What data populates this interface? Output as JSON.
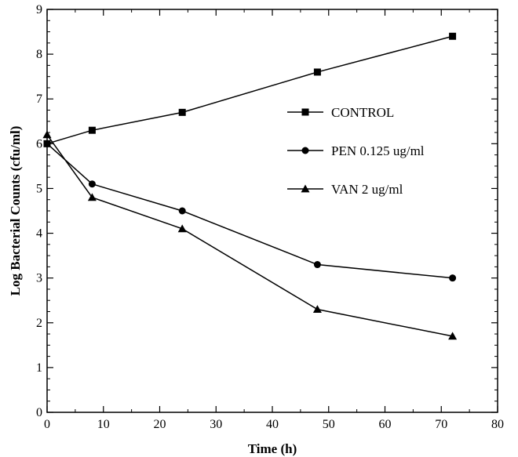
{
  "chart_data": {
    "type": "line",
    "xlabel": "Time (h)",
    "ylabel": "Log Bacterial Counts (cfu/ml)",
    "xlim": [
      0,
      80
    ],
    "ylim": [
      0,
      9
    ],
    "x_ticks": [
      0,
      10,
      20,
      30,
      40,
      50,
      60,
      70,
      80
    ],
    "y_ticks": [
      0,
      1,
      2,
      3,
      4,
      5,
      6,
      7,
      8,
      9
    ],
    "x_tick_labels": [
      "0",
      "10",
      "20",
      "30",
      "40",
      "50",
      "60",
      "70",
      "80"
    ],
    "y_tick_labels": [
      "0",
      "1",
      "2",
      "3",
      "4",
      "5",
      "6",
      "7",
      "8",
      "9"
    ],
    "grid": false,
    "legend_position": "center-right",
    "series": [
      {
        "name": "CONTROL",
        "marker": "square",
        "color": "#000000",
        "x": [
          0,
          8,
          24,
          48,
          72
        ],
        "y": [
          6.0,
          6.3,
          6.7,
          7.6,
          8.4
        ]
      },
      {
        "name": "PEN 0.125 ug/ml",
        "marker": "circle",
        "color": "#000000",
        "x": [
          0,
          8,
          24,
          48,
          72
        ],
        "y": [
          6.0,
          5.1,
          4.5,
          3.3,
          3.0
        ]
      },
      {
        "name": "VAN 2 ug/ml",
        "marker": "triangle",
        "color": "#000000",
        "x": [
          0,
          8,
          24,
          48,
          72
        ],
        "y": [
          6.2,
          4.8,
          4.1,
          2.3,
          1.7
        ]
      }
    ]
  }
}
